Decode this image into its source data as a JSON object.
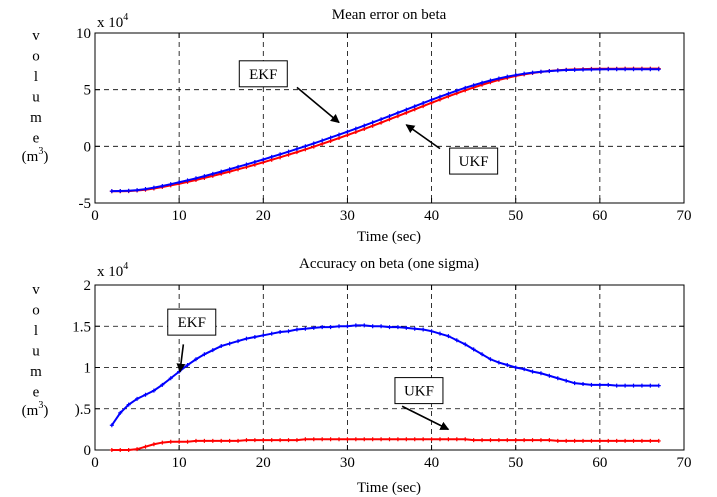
{
  "chart_data": [
    {
      "type": "line",
      "title": "Mean error on beta",
      "xlabel": "Time (sec)",
      "ylabel_letters": [
        "v",
        "o",
        "l",
        "u",
        "m",
        "e"
      ],
      "ylabel_unit": "(m",
      "ylabel_unit_sup": "3",
      "ylabel_unit_close": ")",
      "scale_base": "x 10",
      "scale_exp": "4",
      "xlim": [
        0,
        70
      ],
      "ylim": [
        -5,
        10
      ],
      "xticks": [
        0,
        10,
        20,
        30,
        40,
        50,
        60,
        70
      ],
      "yticks": [
        -5,
        0,
        5,
        10
      ],
      "ytick_labels": [
        "-5",
        "0",
        "5",
        "10"
      ],
      "grid": true,
      "series": [
        {
          "name": "UKF",
          "color": "#ff0000",
          "x": [
            2,
            3,
            4,
            5,
            6,
            7,
            8,
            9,
            10,
            11,
            12,
            13,
            14,
            15,
            16,
            17,
            18,
            19,
            20,
            21,
            22,
            23,
            24,
            25,
            26,
            27,
            28,
            29,
            30,
            31,
            32,
            33,
            34,
            35,
            36,
            37,
            38,
            39,
            40,
            41,
            42,
            43,
            44,
            45,
            46,
            47,
            48,
            49,
            50,
            51,
            52,
            53,
            54,
            55,
            56,
            57,
            58,
            59,
            60,
            61,
            62,
            63,
            64,
            65,
            66,
            67
          ],
          "values": [
            -3.96,
            -3.96,
            -3.95,
            -3.9,
            -3.83,
            -3.72,
            -3.59,
            -3.45,
            -3.3,
            -3.14,
            -2.97,
            -2.79,
            -2.61,
            -2.42,
            -2.23,
            -2.03,
            -1.83,
            -1.62,
            -1.41,
            -1.19,
            -0.97,
            -0.74,
            -0.51,
            -0.27,
            -0.03,
            0.22,
            0.47,
            0.73,
            0.99,
            1.26,
            1.53,
            1.81,
            2.09,
            2.38,
            2.67,
            2.96,
            3.26,
            3.55,
            3.84,
            4.13,
            4.41,
            4.68,
            4.94,
            5.19,
            5.43,
            5.65,
            5.86,
            6.04,
            6.21,
            6.35,
            6.47,
            6.57,
            6.65,
            6.71,
            6.76,
            6.79,
            6.81,
            6.83,
            6.84,
            6.85,
            6.85,
            6.86,
            6.86,
            6.86,
            6.86,
            6.86
          ]
        },
        {
          "name": "EKF",
          "color": "#0000ff",
          "x": [
            2,
            3,
            4,
            5,
            6,
            7,
            8,
            9,
            10,
            11,
            12,
            13,
            14,
            15,
            16,
            17,
            18,
            19,
            20,
            21,
            22,
            23,
            24,
            25,
            26,
            27,
            28,
            29,
            30,
            31,
            32,
            33,
            34,
            35,
            36,
            37,
            38,
            39,
            40,
            41,
            42,
            43,
            44,
            45,
            46,
            47,
            48,
            49,
            50,
            51,
            52,
            53,
            54,
            55,
            56,
            57,
            58,
            59,
            60,
            61,
            62,
            63,
            64,
            65,
            66,
            67
          ],
          "values": [
            -3.95,
            -3.94,
            -3.92,
            -3.86,
            -3.77,
            -3.64,
            -3.5,
            -3.34,
            -3.17,
            -3.0,
            -2.82,
            -2.63,
            -2.43,
            -2.23,
            -2.02,
            -1.81,
            -1.6,
            -1.38,
            -1.16,
            -0.93,
            -0.7,
            -0.47,
            -0.23,
            0.01,
            0.26,
            0.51,
            0.77,
            1.03,
            1.29,
            1.56,
            1.83,
            2.11,
            2.39,
            2.67,
            2.96,
            3.24,
            3.53,
            3.82,
            4.1,
            4.38,
            4.65,
            4.91,
            5.16,
            5.39,
            5.61,
            5.81,
            5.99,
            6.15,
            6.29,
            6.41,
            6.5,
            6.58,
            6.64,
            6.69,
            6.73,
            6.75,
            6.77,
            6.78,
            6.79,
            6.8,
            6.8,
            6.8,
            6.8,
            6.8,
            6.8,
            6.8
          ]
        }
      ],
      "annotations": [
        {
          "text": "EKF",
          "box": [
            20,
            6.4
          ],
          "arrow_from": [
            24,
            5.2
          ],
          "arrow_to": [
            29,
            2.1
          ]
        },
        {
          "text": "UKF",
          "box": [
            45,
            -1.3
          ],
          "arrow_from": [
            41,
            -0.2
          ],
          "arrow_to": [
            37,
            1.9
          ]
        }
      ]
    },
    {
      "type": "line",
      "title": "Accuracy on beta (one sigma)",
      "xlabel": "Time (sec)",
      "ylabel_letters": [
        "v",
        "o",
        "l",
        "u",
        "m",
        "e"
      ],
      "ylabel_unit": "(m",
      "ylabel_unit_sup": "3",
      "ylabel_unit_close": ")",
      "scale_base": "x 10",
      "scale_exp": "4",
      "xlim": [
        0,
        70
      ],
      "ylim": [
        0,
        2
      ],
      "xticks": [
        0,
        10,
        20,
        30,
        40,
        50,
        60,
        70
      ],
      "yticks": [
        0,
        0.5,
        1,
        1.5,
        2
      ],
      "ytick_labels": [
        "0",
        ").5",
        "1",
        "1.5",
        "2"
      ],
      "grid": true,
      "series": [
        {
          "name": "EKF",
          "color": "#0000ff",
          "x": [
            2,
            3,
            4,
            5,
            6,
            7,
            8,
            9,
            10,
            11,
            12,
            13,
            14,
            15,
            16,
            17,
            18,
            19,
            20,
            21,
            22,
            23,
            24,
            25,
            26,
            27,
            28,
            29,
            30,
            31,
            32,
            33,
            34,
            35,
            36,
            37,
            38,
            39,
            40,
            41,
            42,
            43,
            44,
            45,
            46,
            47,
            48,
            49,
            50,
            51,
            52,
            53,
            54,
            55,
            56,
            57,
            58,
            59,
            60,
            61,
            62,
            63,
            64,
            65,
            66,
            67
          ],
          "values": [
            0.3,
            0.45,
            0.55,
            0.62,
            0.67,
            0.72,
            0.79,
            0.87,
            0.95,
            1.03,
            1.1,
            1.16,
            1.21,
            1.26,
            1.29,
            1.32,
            1.35,
            1.37,
            1.39,
            1.41,
            1.43,
            1.44,
            1.46,
            1.47,
            1.48,
            1.49,
            1.49,
            1.5,
            1.5,
            1.51,
            1.51,
            1.5,
            1.5,
            1.49,
            1.49,
            1.48,
            1.47,
            1.46,
            1.44,
            1.41,
            1.38,
            1.33,
            1.28,
            1.22,
            1.16,
            1.1,
            1.06,
            1.03,
            1.0,
            0.98,
            0.95,
            0.93,
            0.9,
            0.87,
            0.84,
            0.81,
            0.8,
            0.79,
            0.79,
            0.79,
            0.78,
            0.78,
            0.78,
            0.78,
            0.78,
            0.78
          ]
        },
        {
          "name": "UKF",
          "color": "#ff0000",
          "x": [
            2,
            3,
            4,
            5,
            6,
            7,
            8,
            9,
            10,
            11,
            12,
            13,
            14,
            15,
            16,
            17,
            18,
            19,
            20,
            21,
            22,
            23,
            24,
            25,
            26,
            27,
            28,
            29,
            30,
            31,
            32,
            33,
            34,
            35,
            36,
            37,
            38,
            39,
            40,
            41,
            42,
            43,
            44,
            45,
            46,
            47,
            48,
            49,
            50,
            51,
            52,
            53,
            54,
            55,
            56,
            57,
            58,
            59,
            60,
            61,
            62,
            63,
            64,
            65,
            66,
            67
          ],
          "values": [
            0.0,
            0.0,
            0.0,
            0.01,
            0.04,
            0.07,
            0.09,
            0.1,
            0.1,
            0.1,
            0.11,
            0.11,
            0.11,
            0.11,
            0.11,
            0.11,
            0.12,
            0.12,
            0.12,
            0.12,
            0.12,
            0.12,
            0.12,
            0.13,
            0.13,
            0.13,
            0.13,
            0.13,
            0.13,
            0.13,
            0.13,
            0.13,
            0.13,
            0.13,
            0.13,
            0.13,
            0.13,
            0.13,
            0.13,
            0.13,
            0.13,
            0.13,
            0.13,
            0.12,
            0.12,
            0.12,
            0.12,
            0.12,
            0.12,
            0.12,
            0.12,
            0.12,
            0.12,
            0.11,
            0.11,
            0.11,
            0.11,
            0.11,
            0.11,
            0.11,
            0.11,
            0.11,
            0.11,
            0.11,
            0.11,
            0.11
          ]
        }
      ],
      "annotations": [
        {
          "text": "EKF",
          "box": [
            11.5,
            1.55
          ],
          "arrow_from": [
            10.5,
            1.28
          ],
          "arrow_to": [
            10.1,
            0.95
          ]
        },
        {
          "text": "UKF",
          "box": [
            38.5,
            0.72
          ],
          "arrow_from": [
            36.5,
            0.53
          ],
          "arrow_to": [
            42,
            0.25
          ]
        }
      ]
    }
  ]
}
